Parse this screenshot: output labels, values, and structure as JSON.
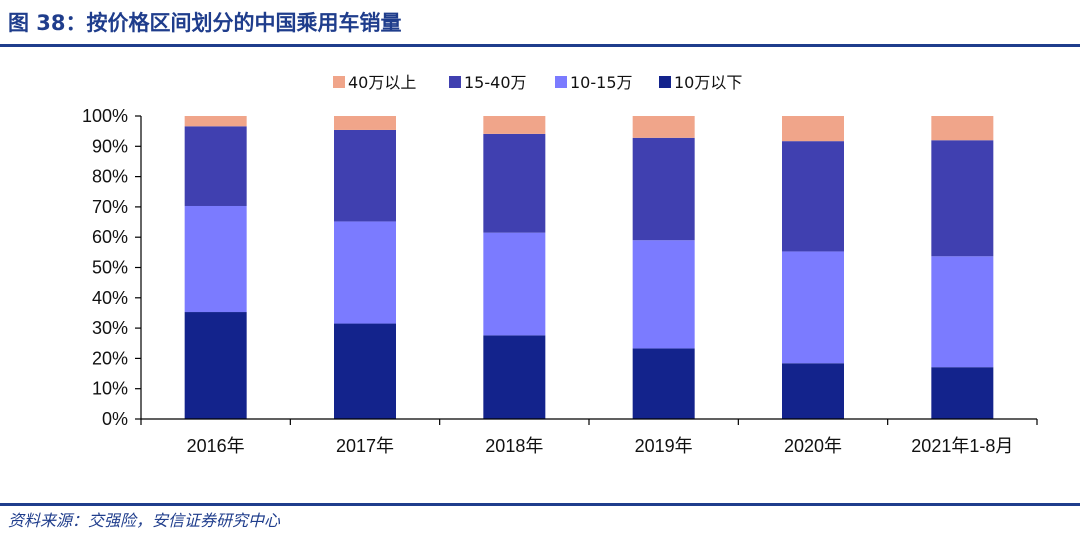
{
  "header": {
    "title": "图 38：按价格区间划分的中国乘用车销量"
  },
  "footer": {
    "source": "资料来源：交强险，安信证券研究中心"
  },
  "chart_data": {
    "type": "bar",
    "stacked": true,
    "categories": [
      "2016年",
      "2017年",
      "2018年",
      "2019年",
      "2020年",
      "2021年1-8月"
    ],
    "series": [
      {
        "name": "10万以下",
        "color": "#13238c",
        "values": [
          35.3,
          31.5,
          27.6,
          23.3,
          18.4,
          17.1
        ]
      },
      {
        "name": "10-15万",
        "color": "#7b7bff",
        "values": [
          35.0,
          33.7,
          33.9,
          35.7,
          36.9,
          36.6
        ]
      },
      {
        "name": "15-40万",
        "color": "#4040b0",
        "values": [
          26.3,
          30.2,
          32.6,
          33.8,
          36.4,
          38.3
        ]
      },
      {
        "name": "40万以上",
        "color": "#f0a58a",
        "values": [
          3.4,
          4.6,
          5.9,
          7.2,
          8.3,
          8.0
        ]
      }
    ],
    "legend_order": [
      "40万以上",
      "15-40万",
      "10-15万",
      "10万以下"
    ],
    "legend_position": "top",
    "ylim": [
      0,
      100
    ],
    "yticks": [
      "0%",
      "10%",
      "20%",
      "30%",
      "40%",
      "50%",
      "60%",
      "70%",
      "80%",
      "90%",
      "100%"
    ],
    "grid": false,
    "xlabel": "",
    "ylabel": ""
  }
}
